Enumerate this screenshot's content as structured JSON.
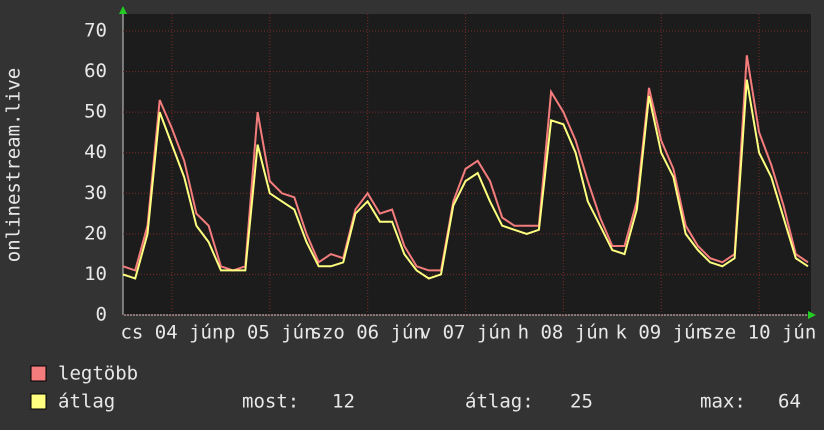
{
  "chart_data": {
    "type": "line",
    "ylabel": "onlinestream.live",
    "xlim": [
      0,
      168
    ],
    "ylim": [
      0,
      70
    ],
    "yticks": [
      0,
      10,
      20,
      30,
      40,
      50,
      60,
      70
    ],
    "xticks": [
      {
        "value": 12,
        "label": "cs 04 jún"
      },
      {
        "value": 36,
        "label": "p 05 jún"
      },
      {
        "value": 60,
        "label": "szo 06 jún"
      },
      {
        "value": 84,
        "label": "v 07 jún"
      },
      {
        "value": 108,
        "label": "h 08 jún"
      },
      {
        "value": 132,
        "label": "k 09 jún"
      },
      {
        "value": 156,
        "label": "sze 10 jún"
      }
    ],
    "grid": true,
    "x": [
      0,
      3,
      6,
      9,
      12,
      15,
      18,
      21,
      24,
      27,
      30,
      33,
      36,
      39,
      42,
      45,
      48,
      51,
      54,
      57,
      60,
      63,
      66,
      69,
      72,
      75,
      78,
      81,
      84,
      87,
      90,
      93,
      96,
      99,
      102,
      105,
      108,
      111,
      114,
      117,
      120,
      123,
      126,
      129,
      132,
      135,
      138,
      141,
      144,
      147,
      150,
      153,
      156,
      159,
      162,
      165,
      168
    ],
    "series": [
      {
        "name": "legtöbb",
        "color": "#f47c7c",
        "values": [
          12,
          11,
          22,
          53,
          46,
          38,
          25,
          22,
          12,
          11,
          12,
          50,
          33,
          30,
          29,
          20,
          13,
          15,
          14,
          26,
          30,
          25,
          26,
          17,
          12,
          11,
          11,
          28,
          36,
          38,
          33,
          24,
          22,
          22,
          22,
          55,
          50,
          43,
          33,
          24,
          17,
          17,
          28,
          56,
          43,
          36,
          22,
          17,
          14,
          13,
          15,
          64,
          45,
          37,
          27,
          15,
          13
        ]
      },
      {
        "name": "átlag",
        "color": "#ffff80",
        "values": [
          10,
          9,
          20,
          50,
          42,
          34,
          22,
          18,
          11,
          11,
          11,
          42,
          30,
          28,
          26,
          18,
          12,
          12,
          13,
          25,
          28,
          23,
          23,
          15,
          11,
          9,
          10,
          27,
          33,
          35,
          28,
          22,
          21,
          20,
          21,
          48,
          47,
          40,
          28,
          22,
          16,
          15,
          26,
          54,
          40,
          34,
          20,
          16,
          13,
          12,
          14,
          58,
          40,
          34,
          24,
          14,
          12
        ]
      }
    ],
    "stats": [
      {
        "label": "most:",
        "value": 12
      },
      {
        "label": "átlag:",
        "value": 25
      },
      {
        "label": "max:",
        "value": 64
      }
    ]
  }
}
